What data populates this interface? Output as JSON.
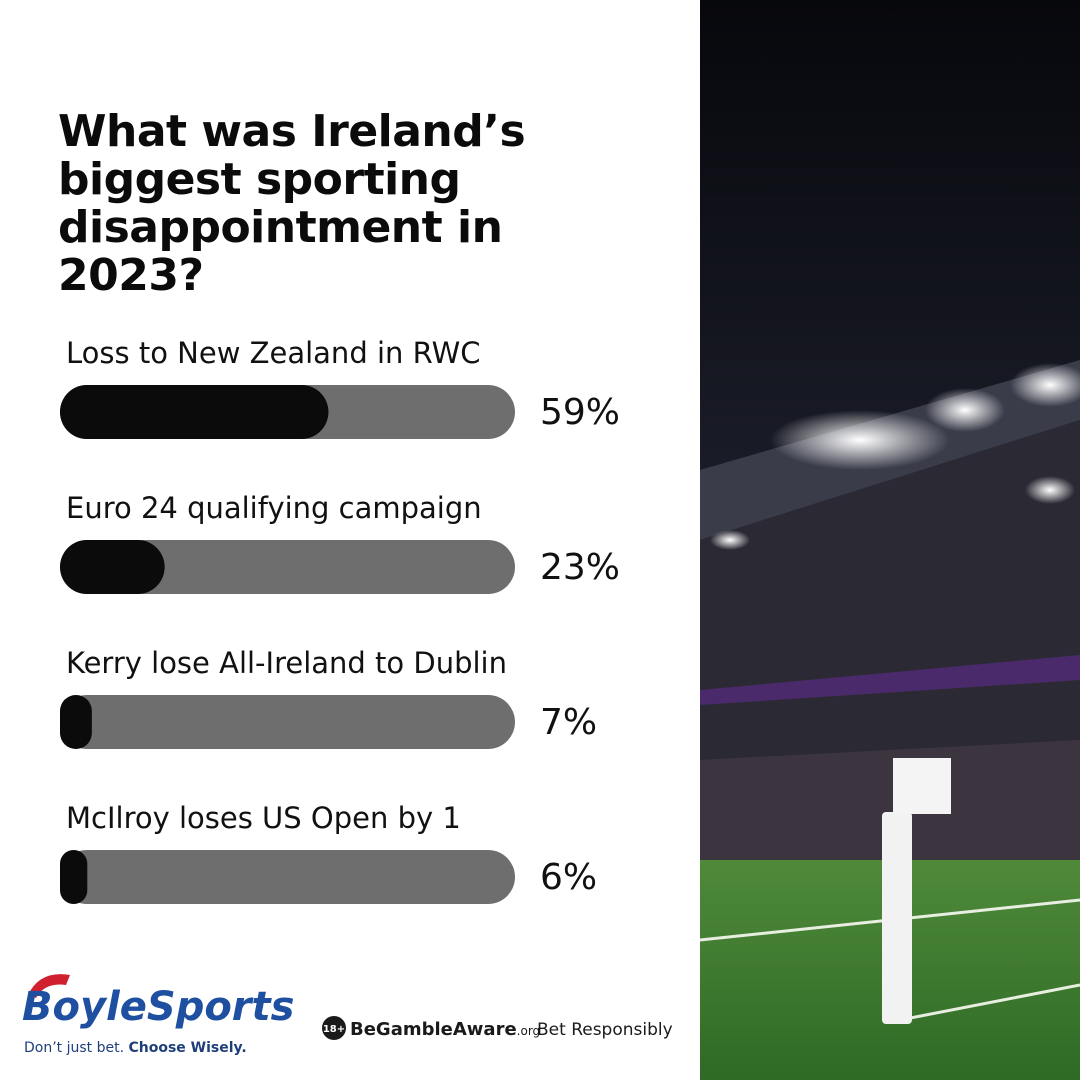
{
  "chart_data": {
    "type": "bar",
    "title": "What was Ireland’s biggest sporting disappointment in 2023?",
    "categories": [
      "Loss to New Zealand in RWC",
      "Euro 24 qualifying campaign",
      "Kerry lose All-Ireland to Dublin",
      "McIlroy loses US Open by 1"
    ],
    "values": [
      59,
      23,
      7,
      6
    ],
    "value_labels": [
      "59%",
      "23%",
      "7%",
      "6%"
    ],
    "color": "#0b0b0c",
    "track_color": "#6e6e6e",
    "xlim": [
      0,
      100
    ]
  },
  "branding": {
    "logo": "BoyleSports",
    "tagline_start": "Don’t just bet.",
    "tagline_end": "Choose Wisely.",
    "age_badge": "18+",
    "gamble_aware": "BeGambleAware",
    "gamble_aware_suffix": ".org",
    "responsible": "Bet Responsibly"
  }
}
